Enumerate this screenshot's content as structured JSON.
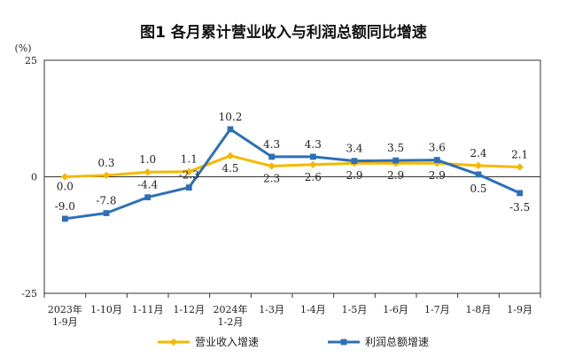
{
  "chart_data": {
    "type": "line",
    "title": "图1  各月累计营业收入与利润总额同比增速",
    "ylabel": "(%)",
    "ylim": [
      -25,
      25
    ],
    "yticks": [
      "25",
      "0",
      "-25"
    ],
    "categories": [
      "2023年\n1-9月",
      "1-10月",
      "1-11月",
      "1-12月",
      "2024年\n1-2月",
      "1-3月",
      "1-4月",
      "1-5月",
      "1-6月",
      "1-7月",
      "1-8月",
      "1-9月"
    ],
    "series": [
      {
        "name": "营业收入增速",
        "color": "#f5b800",
        "values": [
          0.0,
          0.3,
          1.0,
          1.1,
          4.5,
          2.3,
          2.6,
          2.9,
          2.9,
          2.9,
          2.4,
          2.1
        ],
        "labels": [
          "0.0",
          "0.3",
          "1.0",
          "1.1",
          "4.5",
          "2.3",
          "2.6",
          "2.9",
          "2.9",
          "2.9",
          "2.4",
          "2.1"
        ]
      },
      {
        "name": "利润总额增速",
        "color": "#2e6fb7",
        "values": [
          -9.0,
          -7.8,
          -4.4,
          -2.3,
          10.2,
          4.3,
          4.3,
          3.4,
          3.5,
          3.6,
          0.5,
          -3.5
        ],
        "labels": [
          "-9.0",
          "-7.8",
          "-4.4",
          "-2.3",
          "10.2",
          "4.3",
          "4.3",
          "3.4",
          "3.5",
          "3.6",
          "0.5",
          "-3.5"
        ]
      }
    ],
    "legend_position": "bottom",
    "grid": false
  }
}
